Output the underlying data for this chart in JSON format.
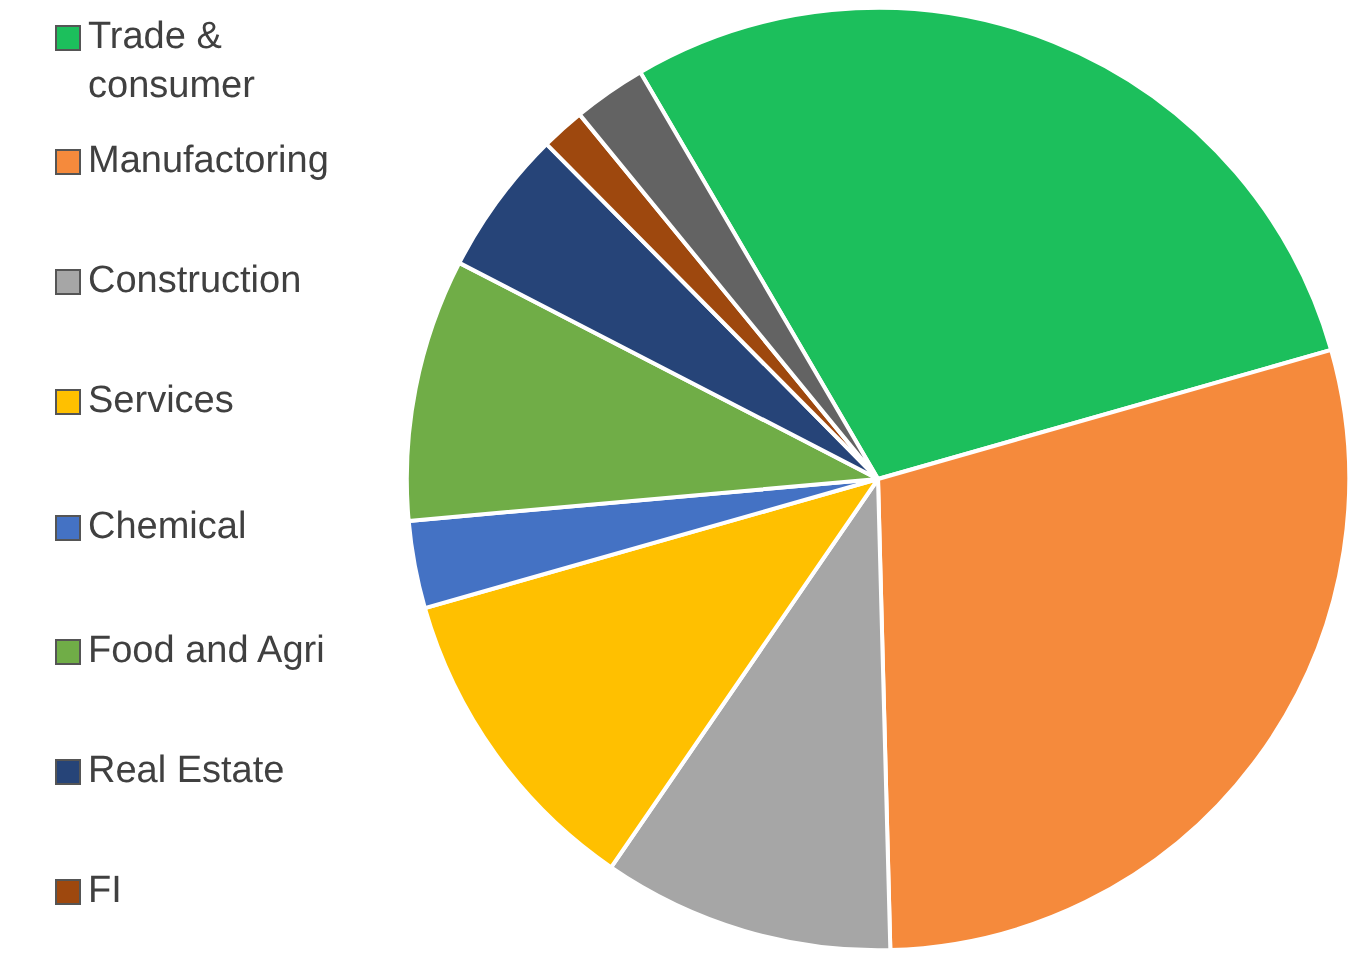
{
  "chart_data": {
    "type": "pie",
    "categories": [
      "Trade &\nconsumer",
      "Manufactoring",
      "Construction",
      "Services",
      "Chemical",
      "Food and Agri",
      "Real Estate",
      "FI",
      null
    ],
    "values": [
      29,
      29,
      10,
      11,
      3,
      9,
      5,
      1.5,
      2.5
    ],
    "colors": [
      "#1cbf5c",
      "#f58a3c",
      "#a6a6a6",
      "#ffc000",
      "#4472c4",
      "#70ad47",
      "#264478",
      "#9e480e",
      "#636363"
    ],
    "legend": "left"
  }
}
